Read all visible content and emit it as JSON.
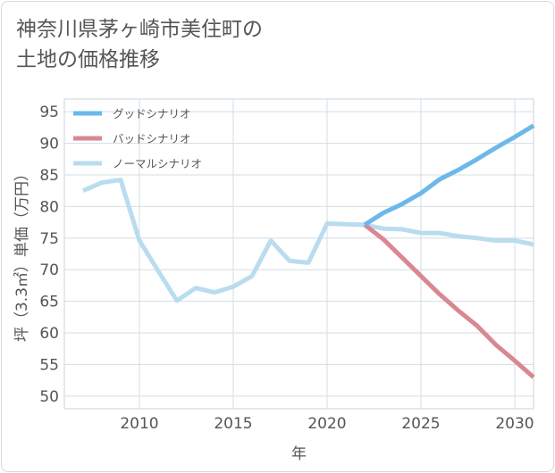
{
  "title_lines": [
    "神奈川県茅ヶ崎市美住町の",
    "土地の価格推移"
  ],
  "chart_data": {
    "type": "line",
    "xlabel": "年",
    "ylabel": "坪（3.3㎡）単価（万円）",
    "xlim": [
      2006,
      2031
    ],
    "ylim": [
      48,
      97
    ],
    "x_ticks": [
      2010,
      2015,
      2020,
      2025,
      2030
    ],
    "y_ticks": [
      50,
      55,
      60,
      65,
      70,
      75,
      80,
      85,
      90,
      95
    ],
    "grid": true,
    "legend_position": "top-left",
    "series": [
      {
        "name": "グッドシナリオ",
        "color": "#6bb8ea",
        "points": [
          [
            2022,
            77.1
          ],
          [
            2023,
            79.0
          ],
          [
            2024,
            80.4
          ],
          [
            2025,
            82.1
          ],
          [
            2026,
            84.3
          ],
          [
            2027,
            85.8
          ],
          [
            2028,
            87.5
          ],
          [
            2029,
            89.3
          ],
          [
            2030,
            91.0
          ],
          [
            2031,
            92.8
          ]
        ]
      },
      {
        "name": "バッドシナリオ",
        "color": "#d98892",
        "points": [
          [
            2022,
            77.1
          ],
          [
            2023,
            74.8
          ],
          [
            2024,
            71.9
          ],
          [
            2025,
            69.0
          ],
          [
            2026,
            66.1
          ],
          [
            2027,
            63.5
          ],
          [
            2028,
            61.1
          ],
          [
            2029,
            58.1
          ],
          [
            2030,
            55.6
          ],
          [
            2031,
            53.0
          ]
        ]
      },
      {
        "name": "ノーマルシナリオ",
        "color": "#b9dcef",
        "points": [
          [
            2007,
            82.5
          ],
          [
            2008,
            83.8
          ],
          [
            2009,
            84.2
          ],
          [
            2010,
            74.6
          ],
          [
            2011,
            69.8
          ],
          [
            2012,
            65.1
          ],
          [
            2013,
            67.1
          ],
          [
            2014,
            66.4
          ],
          [
            2015,
            67.3
          ],
          [
            2016,
            69.0
          ],
          [
            2017,
            74.6
          ],
          [
            2018,
            71.4
          ],
          [
            2019,
            71.1
          ],
          [
            2020,
            77.3
          ],
          [
            2021,
            77.2
          ],
          [
            2022,
            77.1
          ],
          [
            2023,
            76.5
          ],
          [
            2024,
            76.4
          ],
          [
            2025,
            75.8
          ],
          [
            2026,
            75.8
          ],
          [
            2027,
            75.3
          ],
          [
            2028,
            75.0
          ],
          [
            2029,
            74.6
          ],
          [
            2030,
            74.6
          ],
          [
            2031,
            74.0
          ]
        ]
      }
    ]
  }
}
